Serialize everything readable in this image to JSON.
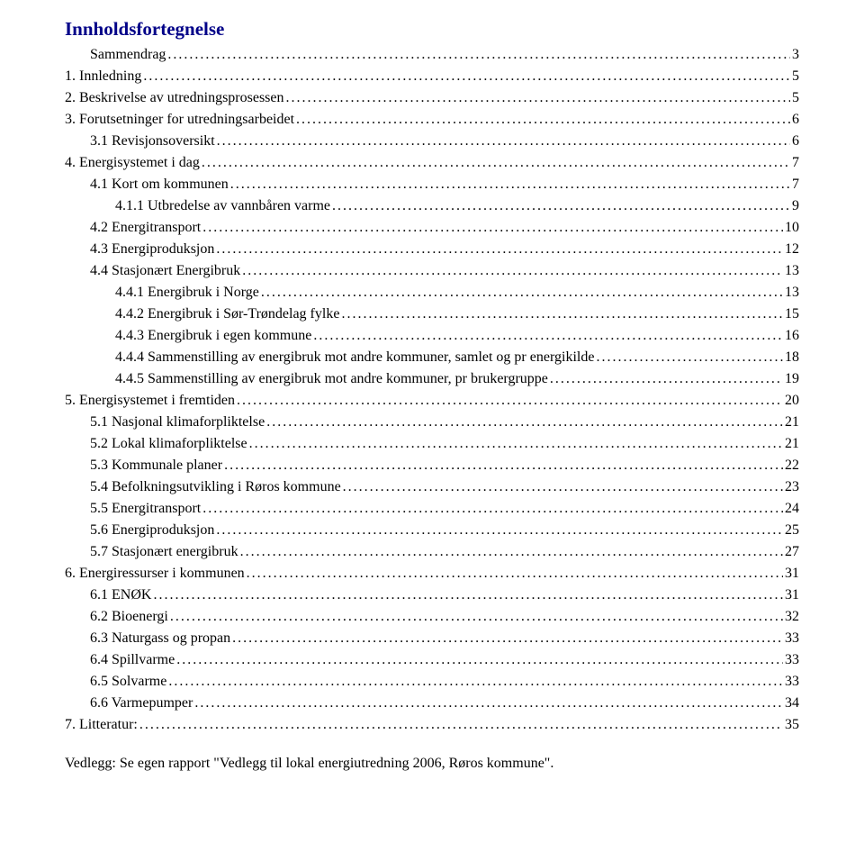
{
  "title": "Innholdsfortegnelse",
  "toc": [
    {
      "indent": 1,
      "label": "Sammendrag",
      "page": "3"
    },
    {
      "indent": 0,
      "label": "1.   Innledning",
      "page": "5"
    },
    {
      "indent": 0,
      "label": "2.   Beskrivelse av utredningsprosessen",
      "page": "5"
    },
    {
      "indent": 0,
      "label": "3.   Forutsetninger for utredningsarbeidet",
      "page": "6"
    },
    {
      "indent": 1,
      "label": "3.1    Revisjonsoversikt",
      "page": "6"
    },
    {
      "indent": 0,
      "label": "4.   Energisystemet i dag",
      "page": "7"
    },
    {
      "indent": 1,
      "label": "4.1    Kort om kommunen",
      "page": "7"
    },
    {
      "indent": 2,
      "label": "4.1.1    Utbredelse av vannbåren varme",
      "page": "9"
    },
    {
      "indent": 1,
      "label": "4.2    Energitransport",
      "page": "10"
    },
    {
      "indent": 1,
      "label": "4.3    Energiproduksjon",
      "page": "12"
    },
    {
      "indent": 1,
      "label": "4.4    Stasjonært Energibruk",
      "page": "13"
    },
    {
      "indent": 2,
      "label": "4.4.1    Energibruk i Norge",
      "page": "13"
    },
    {
      "indent": 2,
      "label": "4.4.2    Energibruk i Sør-Trøndelag fylke",
      "page": "15"
    },
    {
      "indent": 2,
      "label": "4.4.3    Energibruk i egen kommune",
      "page": "16"
    },
    {
      "indent": 2,
      "label": "4.4.4    Sammenstilling av energibruk mot andre kommuner, samlet og pr energikilde",
      "page": "18"
    },
    {
      "indent": 2,
      "label": "4.4.5    Sammenstilling av energibruk mot andre kommuner, pr brukergruppe",
      "page": "19"
    },
    {
      "indent": 0,
      "label": "5.   Energisystemet i fremtiden",
      "page": "20"
    },
    {
      "indent": 1,
      "label": "5.1    Nasjonal klimaforpliktelse",
      "page": "21"
    },
    {
      "indent": 1,
      "label": "5.2    Lokal klimaforpliktelse",
      "page": "21"
    },
    {
      "indent": 1,
      "label": "5.3    Kommunale planer",
      "page": "22"
    },
    {
      "indent": 1,
      "label": "5.4    Befolkningsutvikling i Røros kommune",
      "page": "23"
    },
    {
      "indent": 1,
      "label": "5.5    Energitransport",
      "page": "24"
    },
    {
      "indent": 1,
      "label": "5.6    Energiproduksjon",
      "page": "25"
    },
    {
      "indent": 1,
      "label": "5.7    Stasjonært energibruk",
      "page": "27"
    },
    {
      "indent": 0,
      "label": "6.   Energiressurser i kommunen",
      "page": "31"
    },
    {
      "indent": 1,
      "label": "6.1    ENØK",
      "page": "31"
    },
    {
      "indent": 1,
      "label": "6.2    Bioenergi",
      "page": "32"
    },
    {
      "indent": 1,
      "label": "6.3    Naturgass og propan",
      "page": "33"
    },
    {
      "indent": 1,
      "label": "6.4    Spillvarme",
      "page": "33"
    },
    {
      "indent": 1,
      "label": "6.5    Solvarme",
      "page": "33"
    },
    {
      "indent": 1,
      "label": "6.6    Varmepumper",
      "page": "34"
    },
    {
      "indent": 0,
      "label": "7.   Litteratur:",
      "page": "35"
    }
  ],
  "footer": "Vedlegg: Se egen rapport \"Vedlegg til lokal energiutredning 2006, Røros kommune\"."
}
